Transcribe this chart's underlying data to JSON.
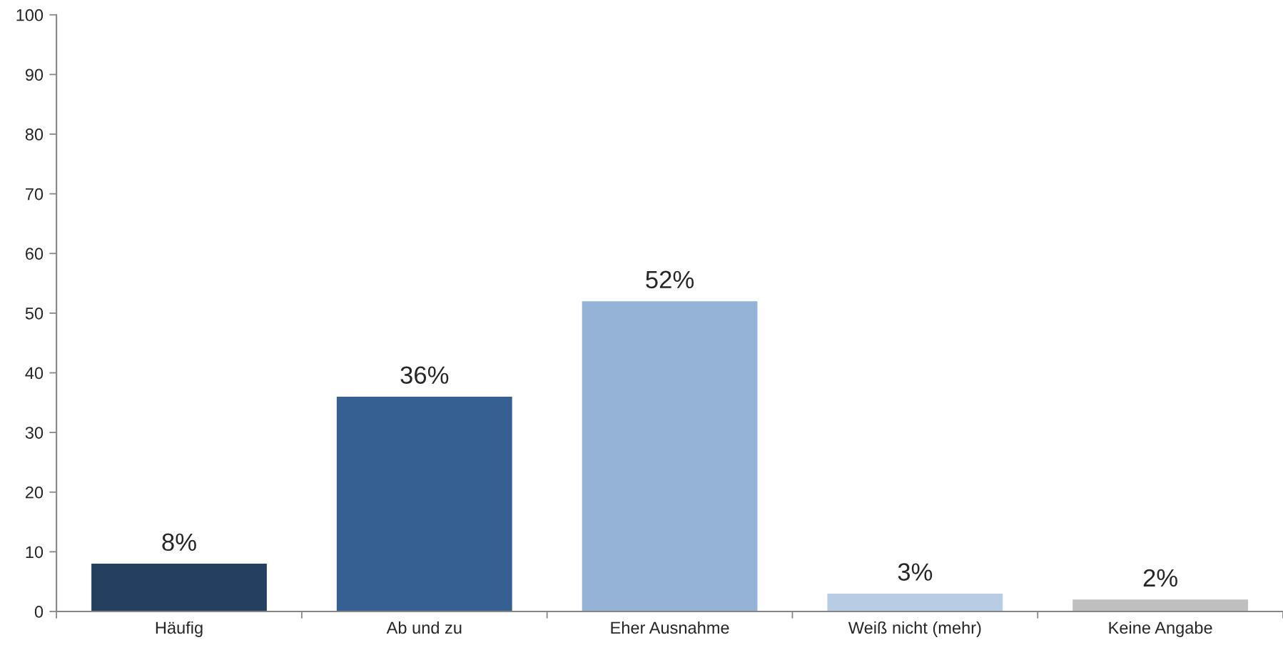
{
  "chart_data": {
    "type": "bar",
    "categories": [
      "Häufig",
      "Ab und zu",
      "Eher Ausnahme",
      "Weiß nicht (mehr)",
      "Keine Angabe"
    ],
    "values": [
      8,
      36,
      52,
      3,
      2
    ],
    "colors": [
      "#243f60",
      "#366092",
      "#95b3d7",
      "#b8cce4",
      "#bfbfbf"
    ],
    "value_labels": [
      "8%",
      "36%",
      "52%",
      "3%",
      "2%"
    ],
    "ylim": [
      0,
      100
    ],
    "yticks": [
      0,
      10,
      20,
      30,
      40,
      50,
      60,
      70,
      80,
      90,
      100
    ],
    "grid": false,
    "legend": false
  }
}
